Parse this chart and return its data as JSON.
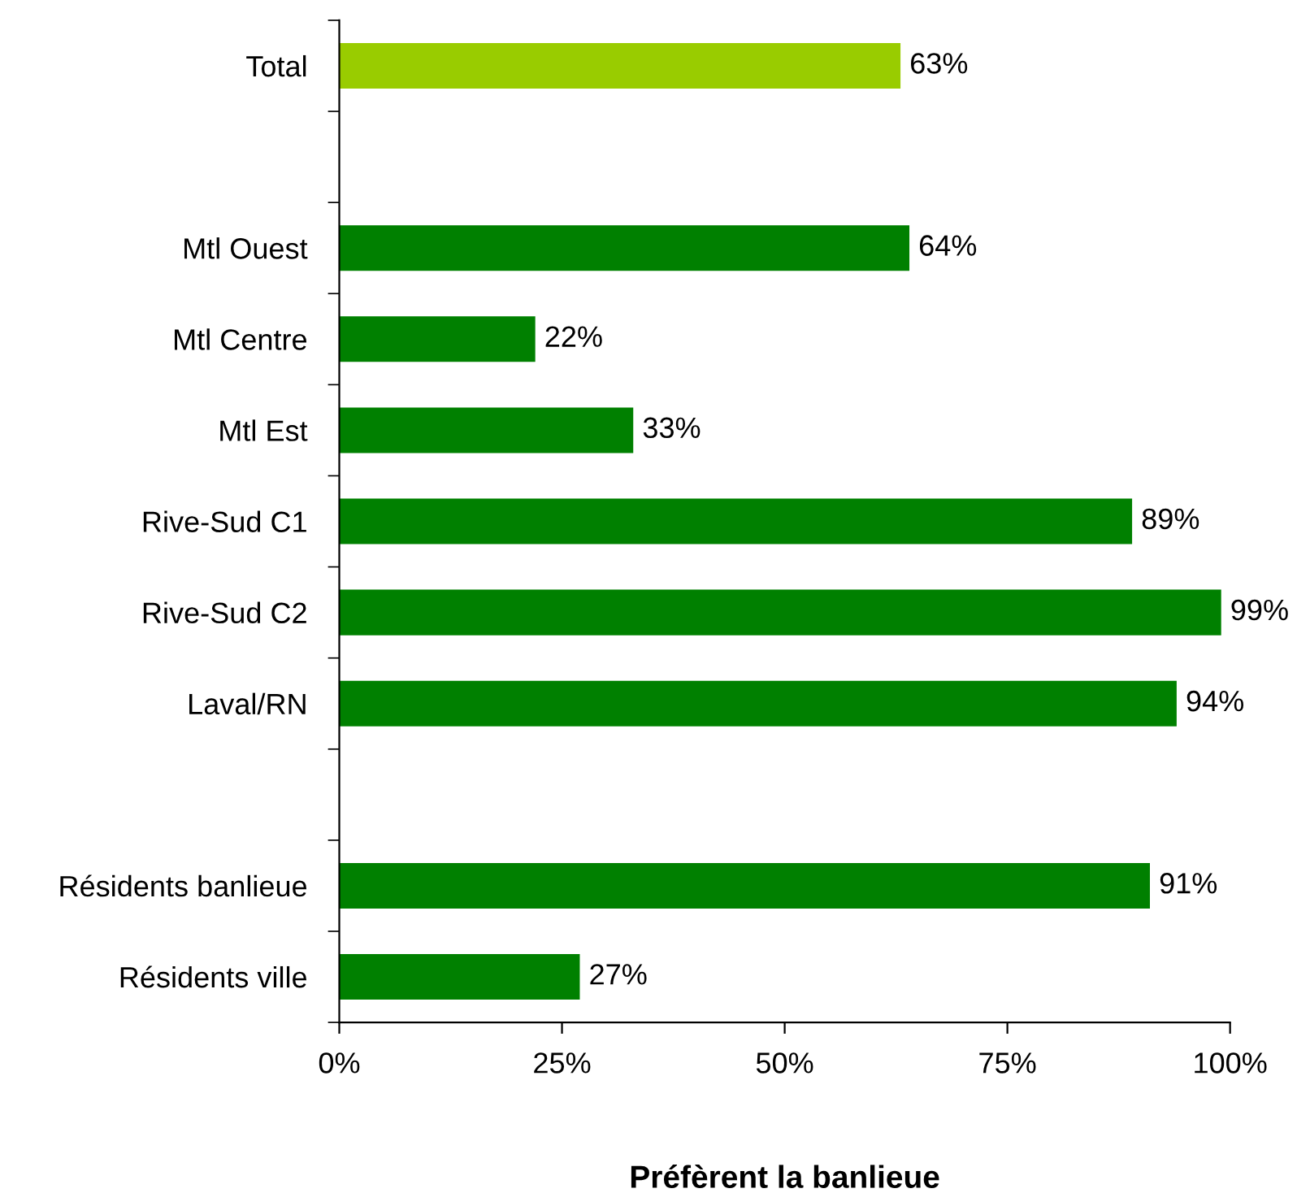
{
  "chart_data": {
    "type": "bar",
    "orientation": "horizontal",
    "xlabel": "Préfèrent la banlieue",
    "categories": [
      "Total",
      null,
      "Mtl Ouest",
      "Mtl Centre",
      "Mtl Est",
      "Rive-Sud C1",
      "Rive-Sud C2",
      "Laval/RN",
      null,
      "Résidents banlieue",
      "Résidents ville"
    ],
    "values": [
      63,
      null,
      64,
      22,
      33,
      89,
      99,
      94,
      null,
      91,
      27
    ],
    "colors": [
      "#99cc00",
      null,
      "#008000",
      "#008000",
      "#008000",
      "#008000",
      "#008000",
      "#008000",
      null,
      "#008000",
      "#008000"
    ],
    "value_labels": [
      "63%",
      null,
      "64%",
      "22%",
      "33%",
      "89%",
      "99%",
      "94%",
      null,
      "91%",
      "27%"
    ],
    "xlim": [
      0,
      100
    ],
    "xticks": [
      {
        "value": 0,
        "label": "0%"
      },
      {
        "value": 25,
        "label": "25%"
      },
      {
        "value": 50,
        "label": "50%"
      },
      {
        "value": 75,
        "label": "75%"
      },
      {
        "value": 100,
        "label": "100%"
      }
    ],
    "grid": false,
    "legend": false
  }
}
